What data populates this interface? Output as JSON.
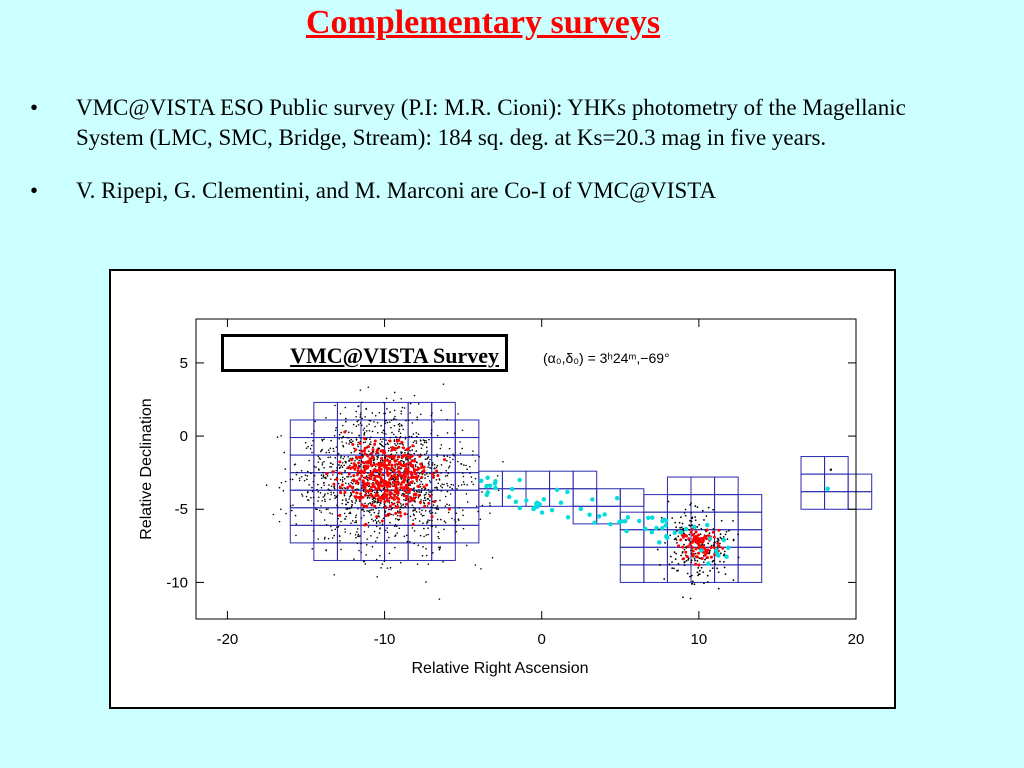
{
  "slide": {
    "title": "Complementary surveys",
    "bullets": [
      {
        "marker": "•",
        "text": "VMC@VISTA ESO Public survey (P.I: M.R. Cioni): YHKs photometry of the Magellanic System (LMC, SMC, Bridge, Stream): 184 sq. deg. at Ks=20.3 mag in five years."
      },
      {
        "marker": "•",
        "text": "V. Ripepi, G. Clementini, and  M. Marconi are Co-I of VMC@VISTA"
      }
    ]
  },
  "chart_data": {
    "type": "scatter",
    "title": "VMC@VISTA Survey",
    "annotation": "(α₀,δ₀) = 3ʰ24ᵐ,−69°",
    "xlabel": "Relative Right Ascension",
    "ylabel": "Relative Declination",
    "xlim": [
      -22,
      20
    ],
    "ylim": [
      -12.5,
      8
    ],
    "xticks": [
      -20,
      -10,
      0,
      10,
      20
    ],
    "yticks": [
      5,
      0,
      -5,
      -10
    ],
    "colors": {
      "points": "#000000",
      "dense_points": "#ff0000",
      "stream_points": "#00dddd",
      "tiles": "#2a2ab0"
    },
    "regions": [
      {
        "name": "LMC",
        "center": [
          -10,
          -3.5
        ],
        "tiles_ra": [
          -16,
          -5
        ],
        "tiles_dec": [
          -8.5,
          2
        ]
      },
      {
        "name": "Bridge",
        "center": [
          0,
          -4
        ],
        "tiles_ra": [
          -4,
          6
        ],
        "tiles_dec": [
          -6,
          -2.5
        ]
      },
      {
        "name": "SMC",
        "center": [
          10,
          -7.5
        ],
        "tiles_ra": [
          5,
          13
        ],
        "tiles_dec": [
          -10,
          -2.5
        ]
      },
      {
        "name": "Stream",
        "center": [
          18,
          -4
        ],
        "tiles_ra": [
          16.5,
          20
        ],
        "tiles_dec": [
          -5,
          -1.5
        ]
      }
    ]
  }
}
